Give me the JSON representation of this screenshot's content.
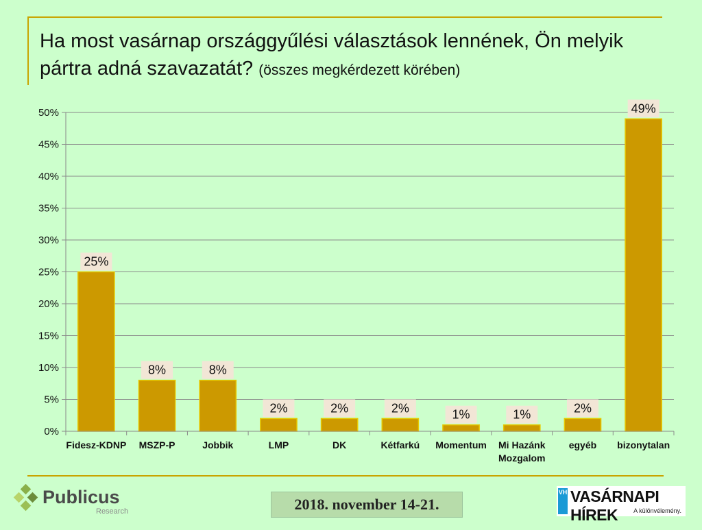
{
  "title_main": "Ha most vasárnap országgyűlési választások lennének, Ön melyik pártra adná szavazatát?",
  "title_sub": "(összes megkérdezett körében)",
  "date": "2018. november 14-21.",
  "logo_left": {
    "name": "Publicus",
    "tag": "Research"
  },
  "logo_right": {
    "name": "VASÁRNAPI HÍREK",
    "tag": "A különvélemény.",
    "badge": "VH"
  },
  "colors": {
    "bar": "#cc9900",
    "bar_border": "#e6c800",
    "label_bg": "#f2e6d6",
    "background": "#ccffcc"
  },
  "chart_data": {
    "type": "bar",
    "categories": [
      "Fidesz-KDNP",
      "MSZP-P",
      "Jobbik",
      "LMP",
      "DK",
      "Kétfarkú",
      "Momentum",
      "Mi Hazánk Mozgalom",
      "egyéb",
      "bizonytalan"
    ],
    "values": [
      25,
      8,
      8,
      2,
      2,
      2,
      1,
      1,
      2,
      49
    ],
    "data_labels": [
      "25%",
      "8%",
      "8%",
      "2%",
      "2%",
      "2%",
      "1%",
      "1%",
      "2%",
      "49%"
    ],
    "ylim": [
      0,
      50
    ],
    "yticks": [
      0,
      5,
      10,
      15,
      20,
      25,
      30,
      35,
      40,
      45,
      50
    ],
    "ytick_labels": [
      "0%",
      "5%",
      "10%",
      "15%",
      "20%",
      "25%",
      "30%",
      "35%",
      "40%",
      "45%",
      "50%"
    ],
    "grid": true,
    "legend": "none"
  }
}
